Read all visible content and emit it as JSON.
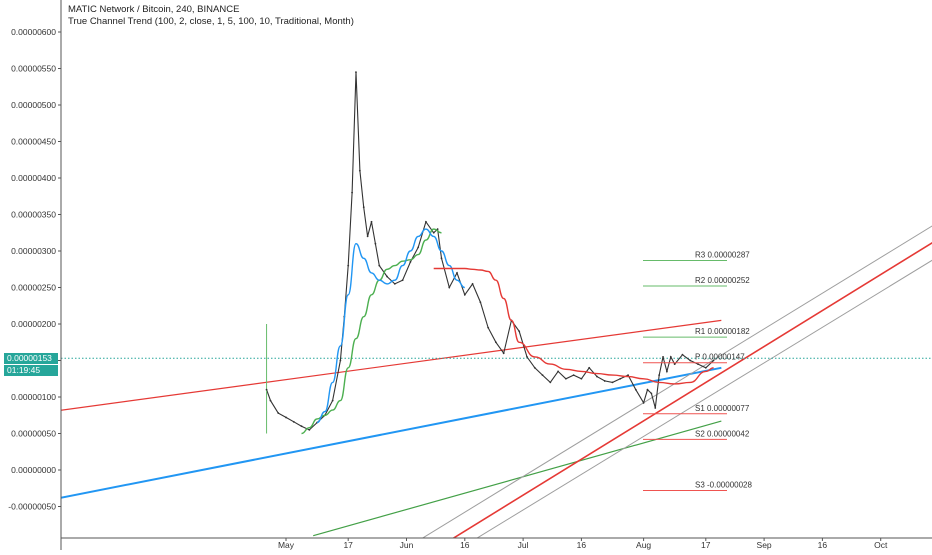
{
  "header": {
    "symbol_line": "MATIC Network / Bitcoin, 240, BINANCE",
    "indicator_line": "True Channel Trend (100, 2, close, 1, 5, 100, 10, Traditional, Month)"
  },
  "price_badge": {
    "value": "0.00000153",
    "countdown": "01:19:45",
    "color": "#26a69a"
  },
  "chart_data": {
    "type": "line",
    "title": "MATIC Network / Bitcoin, 240, BINANCE",
    "ylim": [
      -1.1e-06,
      6.2e-06
    ],
    "y_ticks": [
      "0.00000600",
      "0.00000550",
      "0.00000500",
      "0.00000450",
      "0.00000400",
      "0.00000350",
      "0.00000300",
      "0.00000250",
      "0.00000200",
      "0.00000150",
      "0.00000100",
      "0.00000050",
      "0.00000000",
      "-0.00000050"
    ],
    "y_tick_values": [
      6e-06,
      5.5e-06,
      5e-06,
      4.5e-06,
      4e-06,
      3.5e-06,
      3e-06,
      2.5e-06,
      2e-06,
      1.5e-06,
      1e-06,
      5e-07,
      0,
      -5e-07
    ],
    "x_ticks": [
      {
        "label": "May",
        "day": 0
      },
      {
        "label": "17",
        "day": 16
      },
      {
        "label": "Jun",
        "day": 31
      },
      {
        "label": "16",
        "day": 46
      },
      {
        "label": "Jul",
        "day": 61
      },
      {
        "label": "16",
        "day": 76
      },
      {
        "label": "Aug",
        "day": 92
      },
      {
        "label": "17",
        "day": 108
      },
      {
        "label": "Sep",
        "day": 123
      },
      {
        "label": "16",
        "day": 138
      },
      {
        "label": "Oct",
        "day": 153
      }
    ],
    "series": [
      {
        "style": "close_line",
        "color": "#333333",
        "x": [
          -5,
          -4,
          -2,
          0,
          2,
          4,
          6,
          8,
          10,
          12,
          14,
          15,
          16,
          17,
          18,
          19,
          20,
          21,
          22,
          23,
          24,
          26,
          28,
          30,
          32,
          34,
          36,
          38,
          39,
          40,
          42,
          44,
          46,
          48,
          50,
          52,
          54,
          56,
          58,
          60,
          62,
          64,
          66,
          68,
          70,
          72,
          74,
          76,
          78,
          80,
          82,
          84,
          86,
          88,
          90,
          92,
          93,
          94,
          95,
          96,
          97,
          98,
          99,
          100,
          102,
          104,
          106,
          108,
          110
        ],
        "y": [
          1.1,
          0.95,
          0.78,
          0.72,
          0.66,
          0.6,
          0.55,
          0.65,
          0.75,
          0.95,
          1.5,
          2.1,
          2.8,
          3.8,
          5.45,
          4.1,
          3.6,
          3.2,
          3.4,
          3.1,
          2.8,
          2.65,
          2.55,
          2.6,
          2.85,
          3.05,
          3.4,
          3.25,
          3.3,
          2.9,
          2.5,
          2.7,
          2.4,
          2.55,
          2.3,
          1.95,
          1.75,
          1.6,
          2.05,
          1.9,
          1.55,
          1.4,
          1.3,
          1.2,
          1.35,
          1.25,
          1.3,
          1.25,
          1.4,
          1.28,
          1.22,
          1.2,
          1.25,
          1.3,
          1.1,
          0.92,
          1.1,
          1.05,
          0.85,
          1.3,
          1.55,
          1.35,
          1.55,
          1.45,
          1.58,
          1.5,
          1.45,
          1.4,
          1.5
        ]
      },
      {
        "style": "smooth",
        "color": "#4caf50",
        "x": [
          4,
          6,
          8,
          10,
          12,
          14,
          16,
          18,
          20,
          22,
          24,
          26,
          28,
          30,
          32,
          34,
          36,
          38,
          40
        ],
        "y": [
          0.5,
          0.58,
          0.7,
          0.75,
          0.82,
          0.95,
          1.4,
          1.8,
          2.1,
          2.4,
          2.6,
          2.75,
          2.8,
          2.86,
          2.88,
          2.95,
          3.15,
          3.3,
          3.25
        ]
      },
      {
        "style": "smooth",
        "color": "#2196f3",
        "x": [
          8,
          10,
          12,
          14,
          16,
          18,
          20,
          22,
          24,
          26,
          28,
          30,
          32,
          34,
          36,
          38,
          40,
          42,
          44,
          46
        ],
        "y": [
          0.65,
          0.8,
          1.2,
          1.7,
          2.4,
          3.1,
          2.9,
          2.7,
          2.6,
          2.55,
          2.6,
          2.8,
          3.0,
          3.2,
          3.3,
          3.2,
          3.0,
          2.8,
          2.6,
          2.5
        ]
      },
      {
        "style": "smooth",
        "color": "#e53935",
        "x": [
          38,
          40,
          42,
          44,
          46,
          48,
          50,
          52,
          54,
          56,
          58,
          60,
          64,
          68,
          72,
          76,
          80,
          84,
          88,
          92,
          96,
          100,
          104,
          108,
          110
        ],
        "y": [
          2.76,
          2.76,
          2.76,
          2.76,
          2.76,
          2.75,
          2.74,
          2.72,
          2.6,
          2.35,
          2.05,
          1.75,
          1.55,
          1.45,
          1.38,
          1.35,
          1.32,
          1.3,
          1.28,
          1.25,
          1.2,
          1.18,
          1.2,
          1.35,
          1.4
        ]
      }
    ],
    "trend_lines": [
      {
        "color": "#e53935",
        "width": 1.2,
        "from": {
          "day": -77,
          "value": 6.8e-07
        },
        "to": {
          "day": 112,
          "value": 2.05e-06
        }
      },
      {
        "color": "#2196f3",
        "width": 2,
        "from": {
          "day": -77,
          "value": -5.8e-07
        },
        "to": {
          "day": 112,
          "value": 1.4e-06
        }
      },
      {
        "color": "#43a047",
        "width": 1.2,
        "from": {
          "day": 7,
          "value": -9e-07
        },
        "to": {
          "day": 112,
          "value": 6.7e-07
        }
      },
      {
        "color": "#e53935",
        "width": 1.6,
        "from": {
          "day": 38,
          "value": -1.1e-06
        },
        "to": {
          "day": 168,
          "value": 3.17e-06
        }
      },
      {
        "color": "#9e9e9e",
        "width": 1,
        "from": {
          "day": 30,
          "value": -1.1e-06
        },
        "to": {
          "day": 168,
          "value": 3.4e-06
        }
      },
      {
        "color": "#9e9e9e",
        "width": 1,
        "from": {
          "day": 44,
          "value": -1.1e-06
        },
        "to": {
          "day": 168,
          "value": 2.93e-06
        }
      }
    ],
    "pivot_levels": [
      {
        "label": "R3",
        "value_text": "0.00000287",
        "value": 2.87e-06,
        "color": "#66bb6a"
      },
      {
        "label": "R2",
        "value_text": "0.00000252",
        "value": 2.52e-06,
        "color": "#66bb6a"
      },
      {
        "label": "R1",
        "value_text": "0.00000182",
        "value": 1.82e-06,
        "color": "#66bb6a"
      },
      {
        "label": "P",
        "value_text": "0.00000147",
        "value": 1.47e-06,
        "color": "#ef5350"
      },
      {
        "label": "S1",
        "value_text": "0.00000077",
        "value": 7.7e-07,
        "color": "#ef5350"
      },
      {
        "label": "S2",
        "value_text": "0.00000042",
        "value": 4.2e-07,
        "color": "#ef5350"
      },
      {
        "label": "S3",
        "value_text": "-0.00000028",
        "value": -2.8e-07,
        "color": "#ef5350"
      }
    ],
    "current_price": 1.53e-06,
    "current_price_line_color": "#26a69a"
  }
}
